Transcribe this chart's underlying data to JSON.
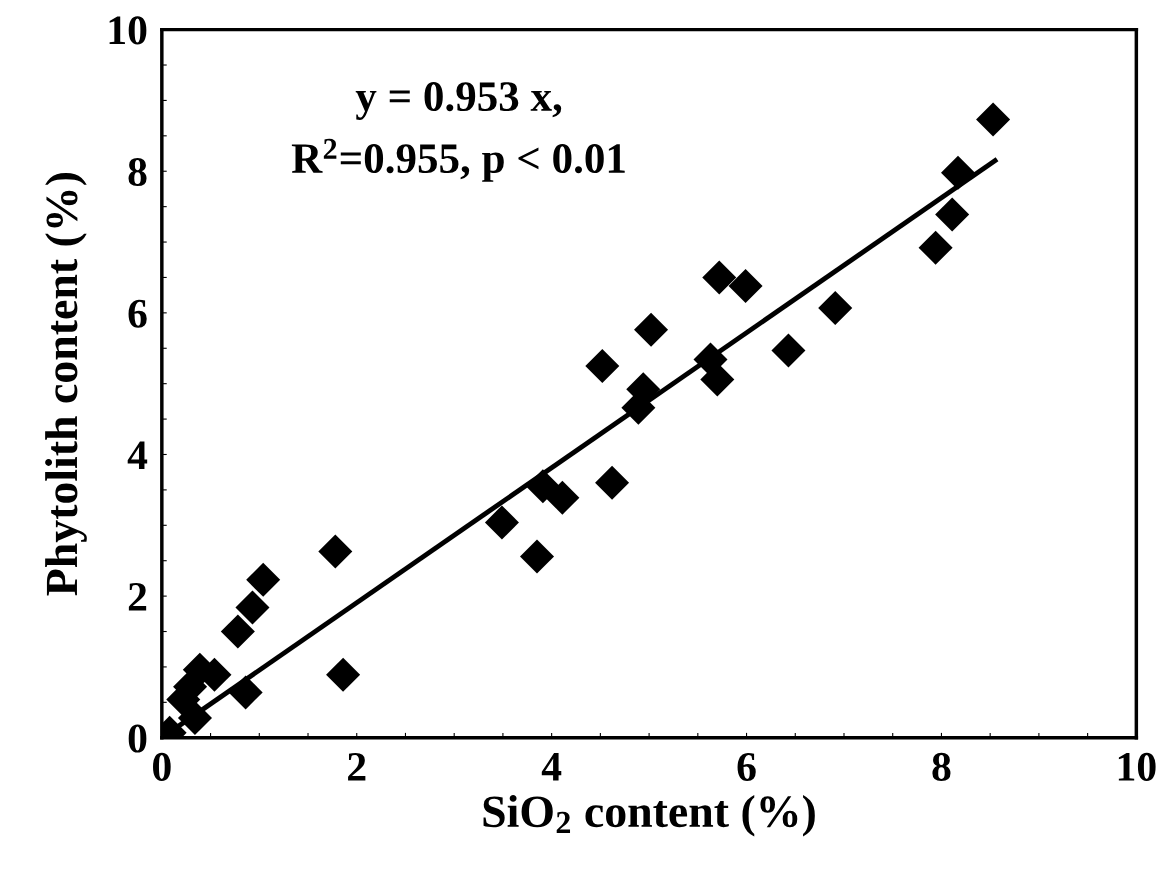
{
  "chart_data": {
    "type": "scatter",
    "xlabel": "SiO$_{2}$ content (%)",
    "ylabel": "Phytolith content (%)",
    "annotations": [
      "y = 0.953 x,",
      "R$^{2}$=0.955, p < 0.01"
    ],
    "series": [
      {
        "color": "#000000",
        "marker": "diamond",
        "x": [
          8.53,
          8.17,
          8.11,
          7.94,
          6.91,
          6.43,
          5.99,
          5.72,
          5.63,
          5.7,
          5.02,
          4.52,
          4.94,
          4.89,
          4.62,
          3.49,
          3.85,
          3.91,
          4.11,
          1.78,
          1.04,
          0.93,
          0.78,
          1.86,
          0.86,
          0.39,
          0.54,
          0.29,
          0.22,
          0.34,
          0.08
        ],
        "values": [
          8.73,
          7.98,
          7.39,
          6.92,
          6.07,
          5.47,
          6.38,
          6.5,
          5.34,
          5.06,
          5.76,
          5.25,
          4.92,
          4.66,
          3.6,
          3.04,
          2.56,
          3.55,
          3.39,
          2.63,
          2.23,
          1.84,
          1.5,
          0.89,
          0.64,
          0.96,
          0.89,
          0.72,
          0.54,
          0.28,
          0.07
        ]
      },
      {
        "type": "line",
        "color": "#000000",
        "marker": "none",
        "line_style": "solid",
        "x": [
          0,
          8.55
        ],
        "values": [
          0,
          8.15
        ]
      }
    ],
    "xlim": [
      0,
      10
    ],
    "ylim": [
      0,
      10
    ],
    "xticks": [
      0,
      {
        "value": 0.5,
        "label": null
      },
      2,
      {
        "value": 1,
        "label": null
      },
      {
        "value": 1.5,
        "label": null
      },
      {
        "value": 2.5,
        "label": null
      },
      {
        "value": 3,
        "label": null
      },
      {
        "value": 3.5,
        "label": null
      },
      4,
      {
        "value": 4.5,
        "label": null
      },
      {
        "value": 5,
        "label": null
      },
      {
        "value": 5.5,
        "label": null
      },
      6,
      {
        "value": 6.5,
        "label": null
      },
      {
        "value": 7,
        "label": null
      },
      {
        "value": 7.5,
        "label": null
      },
      8,
      {
        "value": 8.5,
        "label": null
      },
      {
        "value": 9,
        "label": null
      },
      {
        "value": 9.5,
        "label": null
      },
      10
    ],
    "yticks": [
      0,
      {
        "value": 0.5,
        "label": null
      },
      {
        "value": 1,
        "label": null
      },
      {
        "value": 1.5,
        "label": null
      },
      2,
      {
        "value": 2.5,
        "label": null
      },
      {
        "value": 3,
        "label": null
      },
      {
        "value": 3.5,
        "label": null
      },
      4,
      {
        "value": 4.5,
        "label": null
      },
      {
        "value": 5,
        "label": null
      },
      {
        "value": 5.5,
        "label": null
      },
      6,
      {
        "value": 6.5,
        "label": null
      },
      {
        "value": 7,
        "label": null
      },
      {
        "value": 7.5,
        "label": null
      },
      8,
      {
        "value": 8.5,
        "label": null
      },
      {
        "value": 9,
        "label": null
      },
      {
        "value": 9.5,
        "label": null
      },
      10
    ],
    "grid": false,
    "legend": false
  }
}
